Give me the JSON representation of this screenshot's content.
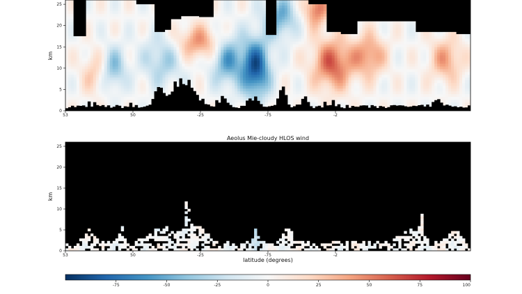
{
  "chart_data": [
    {
      "type": "heatmap",
      "title": "",
      "ylabel": "km",
      "xlabel": "",
      "ylim": [
        0,
        26
      ],
      "yticks": [
        "0",
        "5",
        "10",
        "15",
        "20",
        "25"
      ],
      "xticks": [
        "53",
        "50",
        "-25",
        "-75",
        "-2"
      ],
      "colormap": "RdBu_r",
      "background_color": "#000000",
      "note_values": "HLOS wind field, blue negative / red positive, black = no data"
    },
    {
      "type": "heatmap",
      "title": "Aeolus Mie-cloudy HLOS wind",
      "ylabel": "km",
      "xlabel": "latitude (degrees)",
      "ylim": [
        0,
        26
      ],
      "yticks": [
        "0",
        "5",
        "10",
        "15",
        "20",
        "25"
      ],
      "xticks": [
        "53",
        "50",
        "-25",
        "-75",
        "-2"
      ],
      "colormap": "RdBu_r",
      "background_color": "#000000"
    }
  ],
  "colorbar": {
    "min": -100,
    "max": 100,
    "ticks": [
      "-75",
      "-50",
      "-25",
      "0",
      "25",
      "50",
      "75",
      "100"
    ],
    "tick_values": [
      -75,
      -50,
      -25,
      0,
      25,
      50,
      75,
      100
    ],
    "colors": [
      "#053061",
      "#2166ac",
      "#4393c3",
      "#92c5de",
      "#d1e5f0",
      "#f7f7f7",
      "#fddbc7",
      "#f4a582",
      "#d6604d",
      "#b2182b",
      "#67001f"
    ]
  }
}
